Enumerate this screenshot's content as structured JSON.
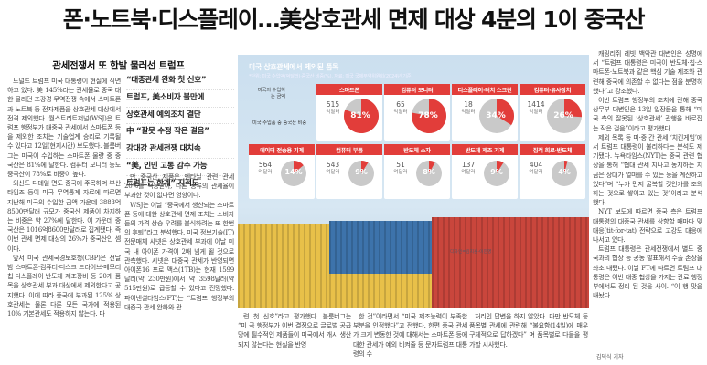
{
  "article": {
    "headline": "폰·노트북·디스플레이…美상호관세 면제 대상 4분의 1이 중국산",
    "subhead": "관세전쟁서 또 한발 물러선 트럼프",
    "quote_lines": [
      "“대중관세 완화 첫 신호”",
      "트럼프, 美소비자 불만에",
      "상호관세 예외조치 결단",
      "中 “잘못 수정 작은 걸음”",
      "강대강 관세전쟁 대치속",
      "“美, 인민 고통 감수 가능",
      "트럼프는 한계” 지적도"
    ],
    "col1": [
      "도널드 트럼프 미국 대통령이 현실에 직면하고 있다. 美 145%라는 관세율로 중국 대한 물리던 초강경 무역전쟁 속에서 스마트폰과 노트북 등 전자제품을 상호관세 대상에서 전격 제외했다. 월스트리트저널(WSJ)은 트럼프 행정부가 대중국 관세에서 스마트폰 등을 제외한 조치는 기술업계 승리로 기록될 수 있다고 12일(현지시간) 보도했다. 블룸버그는 미국이 수입하는 스마트폰 물량 중 중국산은 81%에 달한다. 컴퓨터 모니터 등도 중국산이 78%로 비중이 높다.",
      "외신도 디테일 면도 중국에 주목하며 부산타임즈 등이 미국 무역통계 자료에 따르면 지난해 미국의 수입한 금액 가운데 3883억8500만달러 규모가 중국산 제품이 차지하는 비중은 약 27%에 달한다. 이 가운데 중국산은 1016억8600만달러로 집계됐다. 즉 이번 관세 면제 대상의 26%가 중국산인 셈이다.",
      "앞서 미국 관세국경보호청(CBP)은 전날 밤 스마트폰·컴퓨터·디스크 드라이브·메모리칩·디스플레이·반도체 제조장비 등 20개 품목을 상호관세 부과 대상에서 제외한다고 공지했다. 이에 따라 중국에 부과된 125% 상호관세는 물론 다른 모든 국가에 적용된 10% 기본관세도 적용하지 않는다. 다"
    ],
    "col2": [
      "만 중국산 제품은 펜타닐 관련 관세 20%를 적용받아, 다른 종류의 관세율이 부과한 것이 없다면 영향이다.",
      "WSJ는 이날 “중국에서 생산되는 스마트폰 등에 대한 상호관세 면제 조치는 소비자들의 가격 상승 우려를 불식하려는 또 한번의 후퇴”라고 분석했다. 미국 정보기술(IT) 전문매체 사넷은 상호관세 부과에 이날 미국 내 아이폰 가격이 2배 넘게 뛸 것으로 관측했다. 시넷은 대중국 관세가 반영되면 아이폰16 프로 맥스(1TB)는 현재 1599달러(약 230만원)에서 약 3598달러(약 515만원)로 급등할 수 있다고 전망했다. 파이낸셜타임스(FT)는 “트럼프 행정부의 대중국 관세 완화와 관"
    ],
    "col3": "련 첫 신호”라고 평가했다. 블룸버그는 “미 국 행정부가 이번 결정으로 글로벌 공급망에 필수적인 제품들이 미국에서 개시 생산되지 않는다는 현실을 반영",
    "col4": "한 것”이라면서 “미국 제조능력이 부족한 부분을 인정했다”고 전했다. 한편 중국 관세가 크게 변동한 것에 대해서는 스마트폰 등에 대한 관세가 예외 비켜줄 등 문자트럼프 대통령의 수",
    "col5": "처리인 답변을 하지 않았다. 다만 반도체 등 품목별 관세에 관련해 “불요함(14일)에 매우 구체적으로 답하겠다” 며 품목별로 다들을 평가할 시사했다.",
    "col6": [
      "캐링리쥐 레빗 백악관 대변인은 성명에서 “트럼프 대통령은 미국이 반도체·칩·스마트폰·노트북과 같은 핵심 기술 제조와 관련해 중국에 의존할 수 없다는 점을 분명히 했다”고 강조했다.",
      "이번 트럼프 행정부의 조치에 관해 중국 상무부 대변인은 13일 입장문을 통해 “미국 측의 잘못된 ‘상호관세’ 관행을 바로잡는 작은 걸음”이라고 평가했다.",
      "제외 목록 등 미·중 간 관세 ‘치킨게임’에서 트럼프 대통령이 불리하다는 분석도 제기됐다. 뉴욕타임스(NYT)는 중국 관련 협상을 통해 “협대 관세 지나고 동지하는 지금은 상대가 얼마를 수 있는 등을 계산하고 있다”며 “누가 먼저 굴복할 것인가를 조의하는 것으로 쌓이고 있는 것”이라고 분석했다.",
      "NYT 보도에 따르면 중국 측은 트럼프 대통령의 대중국 관세를 상향할 때마다 맞대응(tit-for-tat) 전략으로 고강도 대응에 나서고 있다.",
      "트럼프 대통령은 관세전쟁에서 별도 중국과의 협상 등 공동 발표해서 수출 손상을 좌초 내렸다. 이날 FT에 따르면 트럼프 대통령은 이번 대중 협상을 가지는 관료 행정부에서도 정리 된 것을 사이. “이 행 맞을 내놨다"
    ],
    "byline": "김덕식 기자"
  },
  "infographic": {
    "title": "미국 상호관세에서 제외된 품목",
    "subtitle": "*단위: 미국 수입액(억달러)·중국산 비중(%), 자료: 미국 국제무역위원회(2024년 기준)",
    "legend_top": "미국의 수입하는 금액",
    "legend_bottom": "미국 수입품 중 중국산 비중",
    "note": "디자인=김지훈·이진영",
    "items": [
      {
        "label": "스마트폰",
        "amount": "515",
        "unit": "억달러",
        "share": 81,
        "share_text": "81%"
      },
      {
        "label": "컴퓨터 모니터",
        "amount": "65",
        "unit": "억달러",
        "share": 78,
        "share_text": "78%"
      },
      {
        "label": "디스플레이·터치 스크린",
        "amount": "18",
        "unit": "억달러",
        "share": 34,
        "share_text": "34%"
      },
      {
        "label": "컴퓨터·유사장치",
        "amount": "1414",
        "unit": "억달러",
        "share": 26,
        "share_text": "26%"
      },
      {
        "label": "데이터 전송용 기계",
        "amount": "564",
        "unit": "억달러",
        "share": 14,
        "share_text": "14%"
      },
      {
        "label": "컴퓨터 부품",
        "amount": "543",
        "unit": "억달러",
        "share": 9,
        "share_text": "9%"
      },
      {
        "label": "반도체 소자",
        "amount": "51",
        "unit": "억달러",
        "share": 8,
        "share_text": "8%"
      },
      {
        "label": "반도체 제조 기계",
        "amount": "137",
        "unit": "억달러",
        "share": 9,
        "share_text": "9%"
      },
      {
        "label": "집적 회로·반도체",
        "amount": "404",
        "unit": "억달러",
        "share": 4,
        "share_text": "4%"
      }
    ],
    "colors": {
      "accent": "#e23d3a",
      "pie_bg": "#c9c9c9",
      "container_red": "#c9463c",
      "container_yellow": "#e8c049",
      "container_blue": "#3d73ab"
    }
  }
}
